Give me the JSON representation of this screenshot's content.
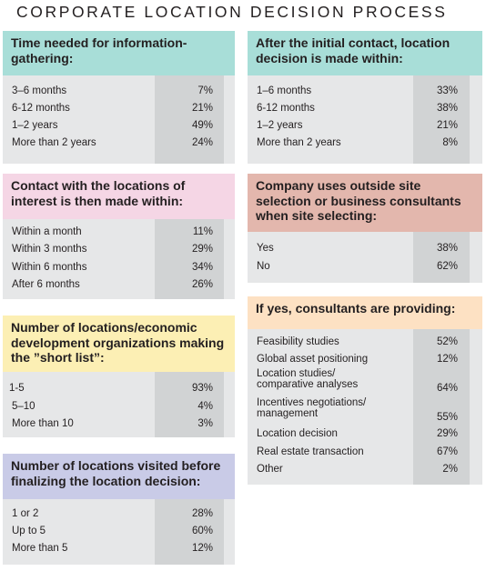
{
  "title": "CORPORATE LOCATION DECISION PROCESS",
  "colors": {
    "panel_bg": "#e6e7e8",
    "value_stripe": "#d1d3d4",
    "teal": "#a8ded8",
    "pink": "#f5d6e5",
    "yellow": "#fcefb4",
    "lavender": "#c9cbe7",
    "rose": "#e3b7ad",
    "peach": "#fde1c3"
  },
  "panels": [
    {
      "heading": "Time needed for information-gathering:",
      "rows": [
        {
          "label": "3–6 months",
          "value": "7%"
        },
        {
          "label": "6-12 months",
          "value": "21%"
        },
        {
          "label": "1–2 years",
          "value": "49%"
        },
        {
          "label": "More than 2 years",
          "value": "24%"
        }
      ]
    },
    {
      "heading": "Contact with the locations of interest is then made within:",
      "rows": [
        {
          "label": "Within a month",
          "value": "11%"
        },
        {
          "label": "Within 3 months",
          "value": "29%"
        },
        {
          "label": "Within 6 months",
          "value": "34%"
        },
        {
          "label": "After 6 months",
          "value": "26%"
        }
      ]
    },
    {
      "heading": "Number of locations/economic development organizations making the ”short list”:",
      "rows": [
        {
          "label": "1-5",
          "value": "93%"
        },
        {
          "label": "5–10",
          "value": "4%"
        },
        {
          "label": "More than 10",
          "value": "3%"
        }
      ]
    },
    {
      "heading": "Number of locations visited before finalizing the location decision:",
      "rows": [
        {
          "label": "1 or 2",
          "value": "28%"
        },
        {
          "label": "Up to 5",
          "value": "60%"
        },
        {
          "label": "More than 5",
          "value": "12%"
        }
      ]
    },
    {
      "heading": "After the initial contact, location decision is made within:",
      "rows": [
        {
          "label": "1–6 months",
          "value": "33%"
        },
        {
          "label": "6-12 months",
          "value": "38%"
        },
        {
          "label": "1–2 years",
          "value": "21%"
        },
        {
          "label": "More than 2 years",
          "value": "8%"
        }
      ]
    },
    {
      "heading": "Company uses outside site selection or business consultants when site selecting:",
      "rows": [
        {
          "label": "Yes",
          "value": "38%"
        },
        {
          "label": "No",
          "value": "62%"
        }
      ]
    },
    {
      "heading": "If yes, consultants are providing:",
      "rows": [
        {
          "label": "Feasibility studies",
          "value": "52%"
        },
        {
          "label": "Global asset positioning",
          "value": "12%"
        },
        {
          "label": "Location studies/ comparative analyses",
          "value": "64%"
        },
        {
          "label": "Incentives negotiations/ management",
          "value": "55%"
        },
        {
          "label": "Location decision",
          "value": "29%"
        },
        {
          "label": "Real estate transaction",
          "value": "67%"
        },
        {
          "label": "Other",
          "value": "2%"
        }
      ]
    }
  ],
  "chart_data": {
    "type": "table",
    "title": "CORPORATE LOCATION DECISION PROCESS",
    "tables": [
      {
        "title": "Time needed for information-gathering:",
        "categories": [
          "3–6 months",
          "6-12 months",
          "1–2 years",
          "More than 2 years"
        ],
        "values": [
          7,
          21,
          49,
          24
        ],
        "unit": "%"
      },
      {
        "title": "Contact with the locations of interest is then made within:",
        "categories": [
          "Within a month",
          "Within 3 months",
          "Within 6 months",
          "After 6 months"
        ],
        "values": [
          11,
          29,
          34,
          26
        ],
        "unit": "%"
      },
      {
        "title": "Number of locations/economic development organizations making the ”short list”:",
        "categories": [
          "1-5",
          "5–10",
          "More than 10"
        ],
        "values": [
          93,
          4,
          3
        ],
        "unit": "%"
      },
      {
        "title": "Number of locations visited before finalizing the location decision:",
        "categories": [
          "1 or 2",
          "Up to 5",
          "More than 5"
        ],
        "values": [
          28,
          60,
          12
        ],
        "unit": "%"
      },
      {
        "title": "After the initial contact, location decision is made within:",
        "categories": [
          "1–6 months",
          "6-12 months",
          "1–2 years",
          "More than 2 years"
        ],
        "values": [
          33,
          38,
          21,
          8
        ],
        "unit": "%"
      },
      {
        "title": "Company uses outside site selection or business consultants when site selecting:",
        "categories": [
          "Yes",
          "No"
        ],
        "values": [
          38,
          62
        ],
        "unit": "%"
      },
      {
        "title": "If yes, consultants are providing:",
        "categories": [
          "Feasibility studies",
          "Global asset positioning",
          "Location studies/ comparative analyses",
          "Incentives negotiations/ management",
          "Location decision",
          "Real estate transaction",
          "Other"
        ],
        "values": [
          52,
          12,
          64,
          55,
          29,
          67,
          2
        ],
        "unit": "%"
      }
    ]
  }
}
